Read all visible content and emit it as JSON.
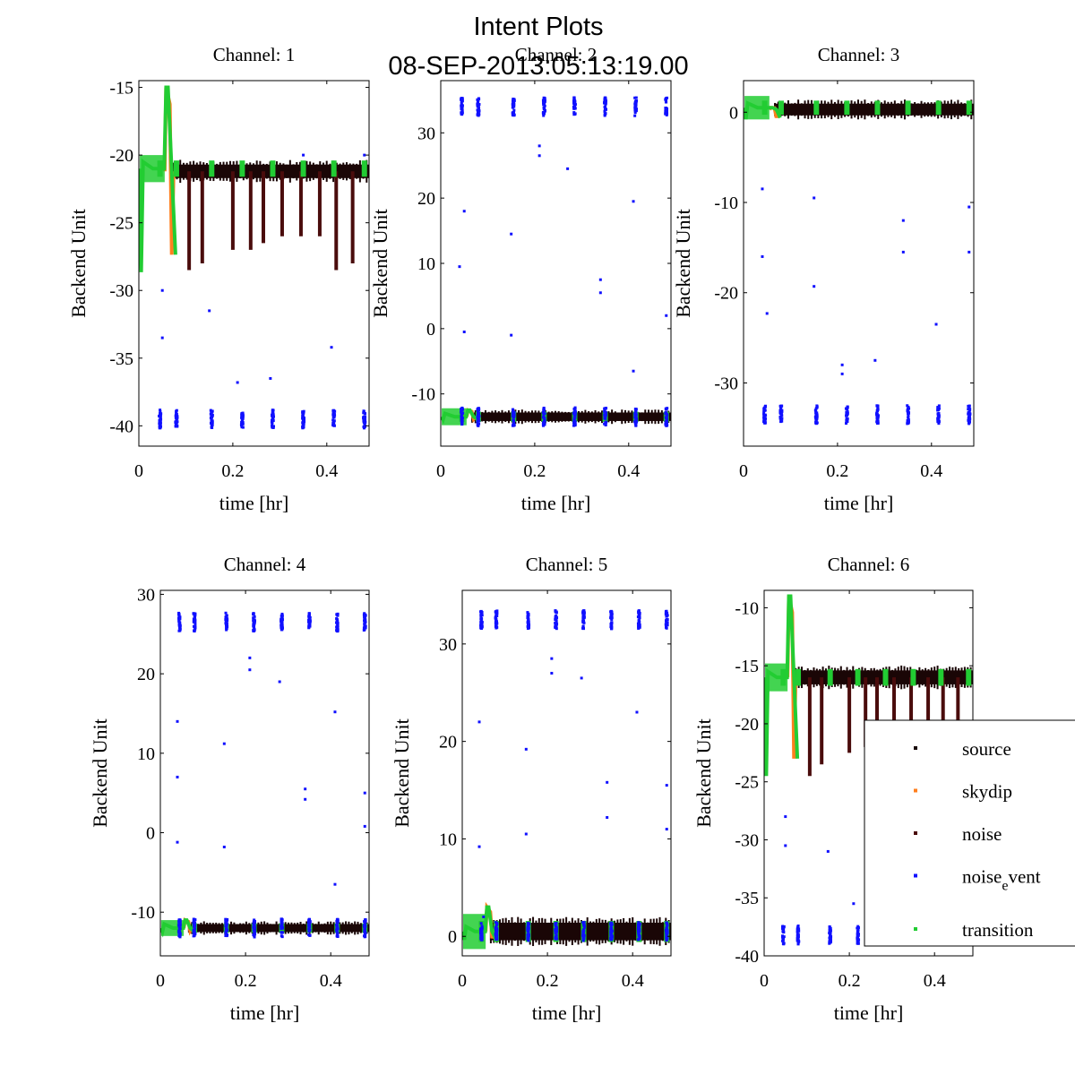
{
  "figure": {
    "title_line1": "Intent Plots",
    "title_line2": "08-SEP-2013:05:13:19.00"
  },
  "legend": {
    "entries": [
      {
        "label": "source",
        "color": "#1a0a0a"
      },
      {
        "label": "skydip",
        "color": "#ff7f1e"
      },
      {
        "label": "noise",
        "color": "#4a0a0a"
      },
      {
        "label": "noise_event_base",
        "text_main": "noise",
        "text_sub": "e",
        "text_rest": "vent",
        "color": "#1010ff"
      },
      {
        "label": "transition",
        "color": "#22cc33"
      }
    ]
  },
  "colors": {
    "source": "#1a0606",
    "skydip": "#ff7f1e",
    "noise": "#4a0c0c",
    "noise_event": "#1010ff",
    "transition": "#22cc33"
  },
  "chart_data": [
    {
      "type": "scatter",
      "title": "Channel: 1",
      "xlabel": "time [hr]",
      "ylabel": "Backend Unit",
      "xlim": [
        0,
        0.49
      ],
      "ylim": [
        -41.5,
        -14.5
      ],
      "xticks": [
        0,
        0.2,
        0.4
      ],
      "yticks": [
        -40,
        -35,
        -30,
        -25,
        -20,
        -15
      ],
      "source_level": -21.2,
      "source_spread": 1.0,
      "noise_dip_to": [
        -28.5,
        -28,
        -27,
        -27,
        -26.5,
        -26,
        -26,
        -26
      ],
      "event_high": null,
      "event_low": -39.5,
      "skydip_peak": -15,
      "skydip_base": -30,
      "transition_level": -21,
      "outliers": [
        [
          0.05,
          -30
        ],
        [
          0.05,
          -33.5
        ],
        [
          0.15,
          -31.5
        ],
        [
          0.21,
          -36.8
        ],
        [
          0.28,
          -36.5
        ],
        [
          0.41,
          -34.2
        ],
        [
          0.35,
          -20
        ],
        [
          0.48,
          -20
        ]
      ]
    },
    {
      "type": "scatter",
      "title": "Channel: 2",
      "xlabel": "time [hr]",
      "ylabel": "Backend Unit",
      "xlim": [
        0,
        0.49
      ],
      "ylim": [
        -18,
        38
      ],
      "xticks": [
        0,
        0.2,
        0.4
      ],
      "yticks": [
        -10,
        0,
        10,
        20,
        30
      ],
      "source_level": -13.5,
      "source_spread": 1.3,
      "noise_dip_to": null,
      "event_high": 34,
      "event_low": -13.5,
      "skydip_peak": -12.5,
      "skydip_base": -14,
      "transition_level": -13.5,
      "outliers": [
        [
          0.05,
          18
        ],
        [
          0.04,
          9.5
        ],
        [
          0.05,
          -0.5
        ],
        [
          0.15,
          14.5
        ],
        [
          0.15,
          -1
        ],
        [
          0.21,
          28
        ],
        [
          0.21,
          26.5
        ],
        [
          0.27,
          24.5
        ],
        [
          0.34,
          7.5
        ],
        [
          0.34,
          5.5
        ],
        [
          0.41,
          19.5
        ],
        [
          0.41,
          -6.5
        ],
        [
          0.48,
          2
        ]
      ]
    },
    {
      "type": "scatter",
      "title": "Channel: 3",
      "xlabel": "time [hr]",
      "ylabel": "Backend Unit",
      "xlim": [
        0,
        0.49
      ],
      "ylim": [
        -37,
        3.5
      ],
      "xticks": [
        0,
        0.2,
        0.4
      ],
      "yticks": [
        -30,
        -20,
        -10,
        0
      ],
      "source_level": 0.3,
      "source_spread": 1.3,
      "noise_dip_to": null,
      "event_high": null,
      "event_low": -33.5,
      "skydip_peak": 0.5,
      "skydip_base": -1,
      "transition_level": 0.5,
      "outliers": [
        [
          0.04,
          -8.5
        ],
        [
          0.04,
          -16
        ],
        [
          0.05,
          -22.3
        ],
        [
          0.15,
          -9.5
        ],
        [
          0.15,
          -19.3
        ],
        [
          0.21,
          -28
        ],
        [
          0.21,
          -29
        ],
        [
          0.28,
          -27.5
        ],
        [
          0.34,
          -12
        ],
        [
          0.34,
          -15.5
        ],
        [
          0.41,
          -23.5
        ],
        [
          0.48,
          -10.5
        ],
        [
          0.48,
          -15.5
        ]
      ]
    },
    {
      "type": "scatter",
      "title": "Channel: 4",
      "xlabel": "time [hr]",
      "ylabel": "Backend Unit",
      "xlim": [
        0,
        0.49
      ],
      "ylim": [
        -15.5,
        30.5
      ],
      "xticks": [
        0,
        0.2,
        0.4
      ],
      "yticks": [
        -10,
        0,
        10,
        20,
        30
      ],
      "source_level": -12,
      "source_spread": 1.0,
      "noise_dip_to": null,
      "event_high": 26.5,
      "event_low": -12,
      "skydip_peak": -11,
      "skydip_base": -12.5,
      "transition_level": -12,
      "outliers": [
        [
          0.04,
          14
        ],
        [
          0.04,
          7
        ],
        [
          0.04,
          -1.2
        ],
        [
          0.15,
          11.2
        ],
        [
          0.15,
          -1.8
        ],
        [
          0.21,
          22
        ],
        [
          0.21,
          20.5
        ],
        [
          0.28,
          19
        ],
        [
          0.34,
          5.5
        ],
        [
          0.34,
          4.2
        ],
        [
          0.41,
          15.2
        ],
        [
          0.41,
          -6.5
        ],
        [
          0.48,
          5
        ],
        [
          0.48,
          0.8
        ]
      ]
    },
    {
      "type": "scatter",
      "title": "Channel: 5",
      "xlabel": "time [hr]",
      "ylabel": "Backend Unit",
      "xlim": [
        0,
        0.49
      ],
      "ylim": [
        -2,
        35.5
      ],
      "xticks": [
        0,
        0.2,
        0.4
      ],
      "yticks": [
        0,
        10,
        20,
        30
      ],
      "source_level": 0.5,
      "source_spread": 1.8,
      "noise_dip_to": null,
      "event_high": 32.5,
      "event_low": 0.5,
      "skydip_peak": 3,
      "skydip_base": -0.5,
      "transition_level": 0.5,
      "outliers": [
        [
          0.04,
          22
        ],
        [
          0.04,
          9.2
        ],
        [
          0.05,
          2
        ],
        [
          0.15,
          19.2
        ],
        [
          0.15,
          10.5
        ],
        [
          0.21,
          28.5
        ],
        [
          0.21,
          27
        ],
        [
          0.28,
          26.5
        ],
        [
          0.34,
          15.8
        ],
        [
          0.34,
          12.2
        ],
        [
          0.41,
          23
        ],
        [
          0.48,
          15.5
        ],
        [
          0.48,
          11
        ]
      ]
    },
    {
      "type": "scatter",
      "title": "Channel: 6",
      "xlabel": "time [hr]",
      "ylabel": "Backend Unit",
      "xlim": [
        0,
        0.49
      ],
      "ylim": [
        -40,
        -8.5
      ],
      "xticks": [
        0,
        0.2,
        0.4
      ],
      "yticks": [
        -40,
        -35,
        -30,
        -25,
        -20,
        -15,
        -10
      ],
      "source_level": -16,
      "source_spread": 1.2,
      "noise_dip_to": [
        -24.5,
        -23.5,
        -22.5,
        -22,
        -21.5,
        -21.5,
        -20.5,
        -20
      ],
      "event_high": null,
      "event_low": -38.2,
      "skydip_peak": -9,
      "skydip_base": -26,
      "transition_level": -16,
      "outliers": [
        [
          0.05,
          -30.5
        ],
        [
          0.05,
          -28
        ],
        [
          0.15,
          -31
        ],
        [
          0.21,
          -35.5
        ],
        [
          0.28,
          -33.5
        ],
        [
          0.35,
          -31.5
        ],
        [
          0.41,
          -30
        ],
        [
          0.48,
          -22
        ]
      ]
    }
  ]
}
